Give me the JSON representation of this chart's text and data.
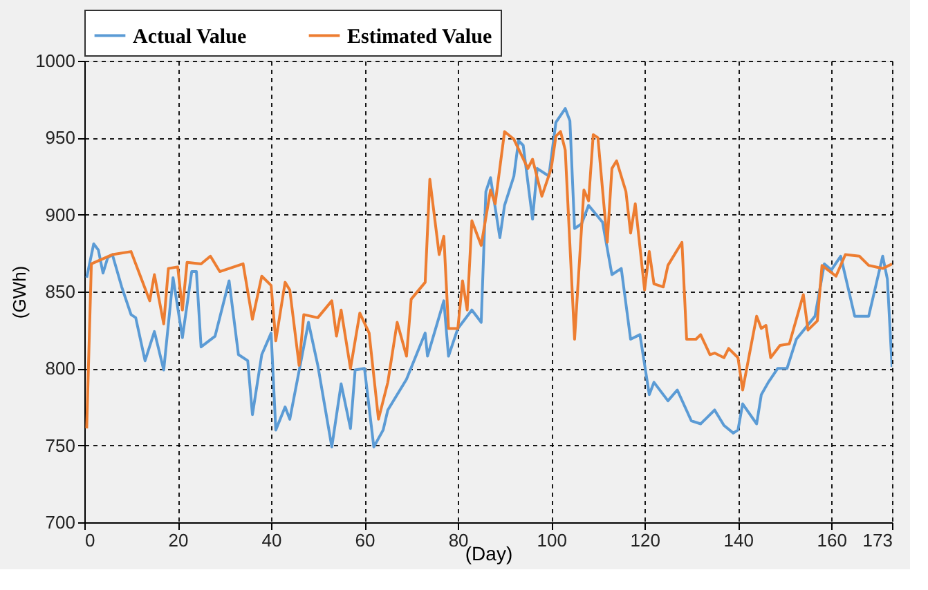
{
  "chart_data": {
    "type": "line",
    "xlabel": "(Day)",
    "ylabel": "(GWh)",
    "xlim": [
      0,
      173
    ],
    "xticks": [
      0,
      20,
      40,
      60,
      80,
      100,
      120,
      140,
      160,
      173
    ],
    "ylim": [
      700,
      1000
    ],
    "yticks": [
      700,
      750,
      800,
      850,
      900,
      950,
      1000
    ],
    "grid": true,
    "legend": "top",
    "line_style": "solid",
    "marker": "none",
    "series": [
      {
        "name": "Actual Value",
        "color": "#5b9bd5",
        "x": [
          0.5,
          2,
          3,
          4,
          5,
          6,
          8,
          10,
          11,
          13,
          15,
          17,
          19,
          21,
          23,
          24,
          25,
          28,
          31,
          33,
          35,
          36,
          38,
          40,
          41,
          43,
          44,
          48,
          50,
          53,
          55,
          57,
          58,
          60,
          62,
          64,
          65,
          69,
          73,
          73.5,
          77,
          78,
          80,
          83,
          85,
          86,
          87,
          89,
          90,
          92,
          93,
          94,
          96,
          97,
          99.5,
          101,
          103,
          104,
          105,
          106.5,
          108,
          111,
          113,
          115,
          117,
          119,
          121,
          122,
          125,
          127,
          130,
          132,
          135,
          137,
          139,
          140,
          141,
          144,
          145,
          146.5,
          148.5,
          150.5,
          152.5,
          156.5,
          158.5,
          160,
          162,
          165,
          168,
          171,
          172,
          173
        ],
        "values": [
          859,
          881,
          877,
          862,
          872,
          874,
          853,
          835,
          833,
          805,
          824,
          799,
          859,
          820,
          863,
          863,
          814,
          821,
          857,
          809,
          805,
          770,
          809,
          823,
          760,
          775,
          767,
          830,
          802,
          749,
          790,
          761,
          799,
          800,
          749,
          760,
          773,
          793,
          823,
          808,
          844,
          808,
          826,
          838,
          830,
          915,
          924,
          885,
          906,
          925,
          948,
          945,
          897,
          930,
          925,
          960,
          969,
          961,
          891,
          894,
          906,
          895,
          861,
          865,
          819,
          822,
          783,
          791,
          779,
          786,
          766,
          764,
          773,
          763,
          758,
          760,
          777,
          764,
          783,
          791,
          800,
          800,
          819,
          834,
          868,
          864,
          873,
          834,
          834,
          873,
          858,
          801
        ]
      },
      {
        "name": "Estimated Value",
        "color": "#ed7d31",
        "x": [
          0.5,
          1.5,
          6,
          10,
          12,
          14,
          15,
          17,
          18,
          20,
          21,
          22,
          25,
          27,
          29,
          34,
          36,
          38,
          40,
          41,
          43,
          44,
          46,
          47,
          50,
          53,
          54,
          55,
          57,
          59,
          61,
          63,
          65,
          67,
          69,
          70,
          73,
          74,
          76,
          77,
          78,
          80,
          81,
          82,
          83,
          85,
          87,
          88,
          90,
          92,
          95,
          96,
          98,
          100,
          101,
          102,
          103,
          105,
          107,
          108,
          109,
          110,
          112,
          113,
          114,
          116,
          117,
          118,
          120,
          121,
          122,
          124,
          125,
          128,
          129,
          131,
          132,
          134,
          135,
          137,
          138,
          140,
          141,
          144,
          145,
          146,
          147,
          149,
          151,
          154,
          155,
          157,
          158,
          161,
          163,
          166,
          168,
          171,
          173
        ],
        "values": [
          761,
          868,
          874,
          876,
          860,
          844,
          861,
          829,
          865,
          866,
          838,
          869,
          868,
          873,
          863,
          868,
          832,
          860,
          854,
          818,
          856,
          851,
          802,
          835,
          833,
          844,
          821,
          838,
          800,
          836,
          823,
          767,
          791,
          830,
          808,
          845,
          856,
          923,
          874,
          886,
          826,
          826,
          857,
          838,
          896,
          880,
          916,
          907,
          954,
          949,
          930,
          936,
          912,
          930,
          951,
          954,
          942,
          819,
          916,
          909,
          952,
          950,
          882,
          930,
          935,
          915,
          888,
          907,
          851,
          876,
          855,
          853,
          867,
          882,
          819,
          819,
          822,
          809,
          810,
          807,
          813,
          807,
          786,
          834,
          826,
          828,
          807,
          815,
          816,
          848,
          825,
          831,
          867,
          860,
          874,
          873,
          867,
          865,
          868
        ]
      }
    ]
  }
}
